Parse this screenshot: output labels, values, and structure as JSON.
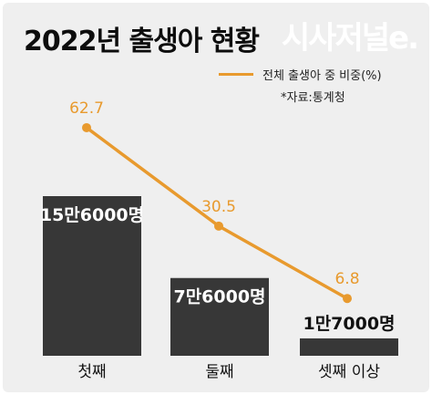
{
  "title": "2022년 출생아 현황",
  "brand": "시사저널e.",
  "legend": {
    "label": "전체 출생아 중 비중(%)",
    "color": "#e89a2e"
  },
  "source": "*자료:통계청",
  "colors": {
    "bar": "#373737",
    "line": "#e89a2e",
    "background": "#efefef"
  },
  "chart_data": {
    "type": "bar",
    "categories": [
      "첫째",
      "둘째",
      "셋째 이상"
    ],
    "series": [
      {
        "values": [
          156000,
          76000,
          17000
        ],
        "labels": [
          "15만6000명",
          "7만6000명",
          "1만7000명"
        ]
      },
      {
        "name": "전체 출생아 중 비중(%)",
        "type": "line",
        "values": [
          62.7,
          30.5,
          6.8
        ]
      }
    ],
    "legend_position": "top-right",
    "grid": false
  }
}
